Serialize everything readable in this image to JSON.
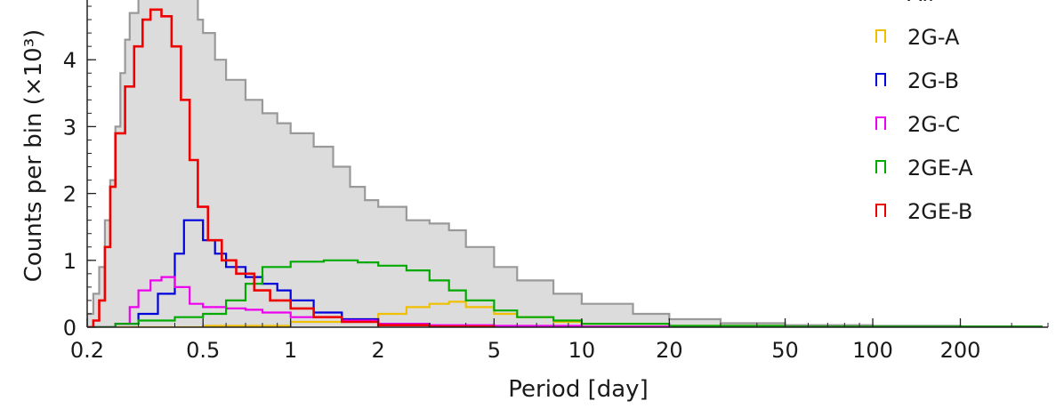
{
  "chart_data": {
    "type": "histogram",
    "xlabel": "Period  [day]",
    "ylabel": "Counts per bin (×10³)",
    "x_scale": "log",
    "xlim": [
      0.2,
      400
    ],
    "ylim": [
      0,
      5.0
    ],
    "x_ticks": [
      0.2,
      0.5,
      1,
      2,
      5,
      10,
      20,
      50,
      100,
      200
    ],
    "x_tick_labels": [
      "0.2",
      "0.5",
      "1",
      "2",
      "5",
      "10",
      "20",
      "50",
      "100",
      "200"
    ],
    "y_ticks": [
      0,
      1,
      2,
      3,
      4
    ],
    "y_tick_labels": [
      "0",
      "1",
      "2",
      "3",
      "4"
    ],
    "legend_position": "top-right",
    "series": [
      {
        "name": "All",
        "color": "#999999",
        "fill": "#dcdcdc",
        "points": [
          [
            0.2,
            0.2
          ],
          [
            0.21,
            0.5
          ],
          [
            0.22,
            0.9
          ],
          [
            0.23,
            1.6
          ],
          [
            0.24,
            2.2
          ],
          [
            0.25,
            3.0
          ],
          [
            0.26,
            3.8
          ],
          [
            0.27,
            4.3
          ],
          [
            0.28,
            4.7
          ],
          [
            0.3,
            5.0
          ],
          [
            0.4,
            5.0
          ],
          [
            0.45,
            5.0
          ],
          [
            0.48,
            4.6
          ],
          [
            0.5,
            4.4
          ],
          [
            0.55,
            4.0
          ],
          [
            0.6,
            3.7
          ],
          [
            0.7,
            3.4
          ],
          [
            0.8,
            3.2
          ],
          [
            0.9,
            3.05
          ],
          [
            1.0,
            2.9
          ],
          [
            1.2,
            2.7
          ],
          [
            1.4,
            2.4
          ],
          [
            1.6,
            2.1
          ],
          [
            1.8,
            1.9
          ],
          [
            2.0,
            1.8
          ],
          [
            2.5,
            1.6
          ],
          [
            3.0,
            1.55
          ],
          [
            3.5,
            1.45
          ],
          [
            4.0,
            1.2
          ],
          [
            5.0,
            0.9
          ],
          [
            6.0,
            0.7
          ],
          [
            8.0,
            0.5
          ],
          [
            10,
            0.35
          ],
          [
            15,
            0.2
          ],
          [
            20,
            0.12
          ],
          [
            30,
            0.06
          ],
          [
            50,
            0.03
          ],
          [
            100,
            0.02
          ],
          [
            200,
            0.01
          ],
          [
            380,
            0.01
          ]
        ]
      },
      {
        "name": "2G-A",
        "color": "#f0c000",
        "points": [
          [
            0.2,
            0.0
          ],
          [
            0.5,
            0.02
          ],
          [
            1.0,
            0.08
          ],
          [
            1.5,
            0.12
          ],
          [
            2.0,
            0.2
          ],
          [
            2.5,
            0.3
          ],
          [
            3.0,
            0.35
          ],
          [
            3.5,
            0.38
          ],
          [
            4.0,
            0.3
          ],
          [
            5.0,
            0.2
          ],
          [
            6.0,
            0.15
          ],
          [
            8.0,
            0.08
          ],
          [
            10,
            0.05
          ],
          [
            20,
            0.02
          ],
          [
            50,
            0.01
          ],
          [
            380,
            0.0
          ]
        ]
      },
      {
        "name": "2G-B",
        "color": "#0000dd",
        "points": [
          [
            0.2,
            0.0
          ],
          [
            0.25,
            0.05
          ],
          [
            0.3,
            0.2
          ],
          [
            0.35,
            0.5
          ],
          [
            0.4,
            1.1
          ],
          [
            0.43,
            1.6
          ],
          [
            0.46,
            1.6
          ],
          [
            0.5,
            1.3
          ],
          [
            0.55,
            1.1
          ],
          [
            0.6,
            0.9
          ],
          [
            0.7,
            0.75
          ],
          [
            0.8,
            0.65
          ],
          [
            0.9,
            0.55
          ],
          [
            1.0,
            0.4
          ],
          [
            1.2,
            0.22
          ],
          [
            1.5,
            0.12
          ],
          [
            2.0,
            0.05
          ],
          [
            3.0,
            0.02
          ],
          [
            5.0,
            0.01
          ],
          [
            10,
            0.0
          ]
        ]
      },
      {
        "name": "2G-C",
        "color": "#ee00ee",
        "points": [
          [
            0.2,
            0.0
          ],
          [
            0.25,
            0.05
          ],
          [
            0.28,
            0.3
          ],
          [
            0.3,
            0.55
          ],
          [
            0.33,
            0.7
          ],
          [
            0.36,
            0.75
          ],
          [
            0.4,
            0.6
          ],
          [
            0.45,
            0.35
          ],
          [
            0.5,
            0.3
          ],
          [
            0.6,
            0.28
          ],
          [
            0.7,
            0.26
          ],
          [
            0.8,
            0.22
          ],
          [
            1.0,
            0.15
          ],
          [
            1.5,
            0.1
          ],
          [
            2.0,
            0.05
          ],
          [
            3.0,
            0.03
          ],
          [
            5.0,
            0.02
          ],
          [
            10,
            0.01
          ],
          [
            380,
            0.0
          ]
        ]
      },
      {
        "name": "2GE-A",
        "color": "#00aa00",
        "points": [
          [
            0.2,
            0.0
          ],
          [
            0.25,
            0.05
          ],
          [
            0.3,
            0.1
          ],
          [
            0.4,
            0.15
          ],
          [
            0.5,
            0.2
          ],
          [
            0.6,
            0.4
          ],
          [
            0.7,
            0.65
          ],
          [
            0.8,
            0.9
          ],
          [
            1.0,
            0.98
          ],
          [
            1.3,
            1.0
          ],
          [
            1.7,
            0.97
          ],
          [
            2.0,
            0.92
          ],
          [
            2.5,
            0.85
          ],
          [
            3.0,
            0.7
          ],
          [
            3.5,
            0.55
          ],
          [
            4.0,
            0.4
          ],
          [
            5.0,
            0.25
          ],
          [
            6.0,
            0.15
          ],
          [
            8.0,
            0.1
          ],
          [
            10,
            0.05
          ],
          [
            20,
            0.02
          ],
          [
            50,
            0.01
          ],
          [
            100,
            0.01
          ],
          [
            380,
            0.0
          ]
        ]
      },
      {
        "name": "2GE-B",
        "color": "#ee0000",
        "points": [
          [
            0.2,
            0.0
          ],
          [
            0.21,
            0.1
          ],
          [
            0.22,
            0.4
          ],
          [
            0.23,
            1.2
          ],
          [
            0.24,
            2.1
          ],
          [
            0.25,
            2.9
          ],
          [
            0.27,
            3.6
          ],
          [
            0.29,
            4.2
          ],
          [
            0.31,
            4.6
          ],
          [
            0.33,
            4.75
          ],
          [
            0.36,
            4.65
          ],
          [
            0.39,
            4.2
          ],
          [
            0.42,
            3.4
          ],
          [
            0.45,
            2.5
          ],
          [
            0.48,
            1.8
          ],
          [
            0.52,
            1.3
          ],
          [
            0.58,
            1.0
          ],
          [
            0.65,
            0.8
          ],
          [
            0.75,
            0.55
          ],
          [
            0.85,
            0.4
          ],
          [
            1.0,
            0.28
          ],
          [
            1.2,
            0.15
          ],
          [
            1.5,
            0.08
          ],
          [
            2.0,
            0.03
          ],
          [
            3.0,
            0.01
          ],
          [
            5.0,
            0.0
          ]
        ]
      }
    ]
  }
}
